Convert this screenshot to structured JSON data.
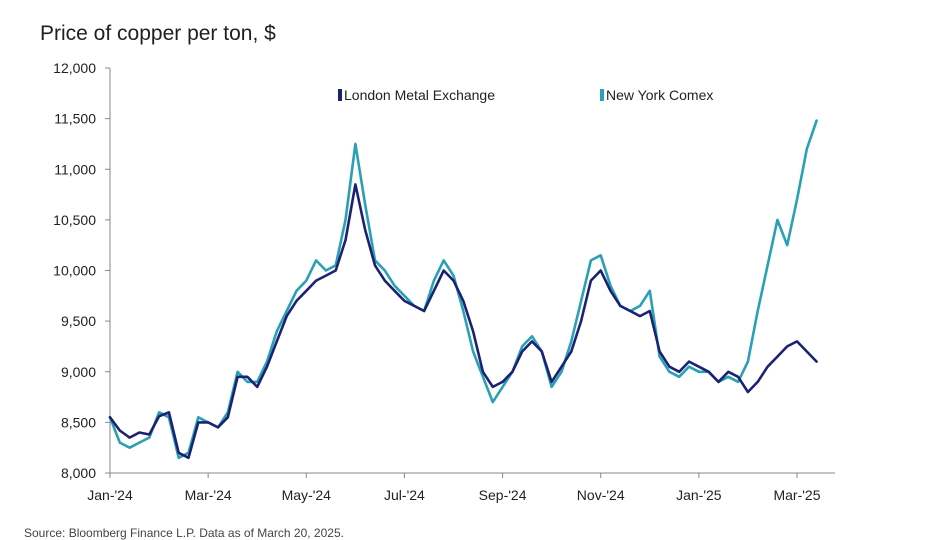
{
  "chart_data": {
    "type": "line",
    "title": "Price of copper per ton, $",
    "xlabel": "",
    "ylabel": "",
    "ylim": [
      8000,
      12000
    ],
    "yticks": [
      8000,
      8500,
      9000,
      9500,
      10000,
      10500,
      11000,
      11500,
      12000
    ],
    "ytick_labels": [
      "8,000",
      "8,500",
      "9,000",
      "9,500",
      "10,000",
      "10,500",
      "11,000",
      "11,500",
      "12,000"
    ],
    "xlim": [
      0,
      14.4
    ],
    "xticks": [
      0,
      2,
      4,
      6,
      8,
      10,
      12,
      14
    ],
    "xtick_labels": [
      "Jan-'24",
      "Mar-'24",
      "May-'24",
      "Jul-'24",
      "Sep-'24",
      "Nov-'24",
      "Jan-'25",
      "Mar-'25"
    ],
    "legend_position": "top",
    "x_unit": "months since Jan 2024",
    "series": [
      {
        "name": "London Metal Exchange",
        "color": "#1c2272",
        "x": [
          0,
          0.2,
          0.4,
          0.6,
          0.8,
          1.0,
          1.2,
          1.4,
          1.6,
          1.8,
          2.0,
          2.2,
          2.4,
          2.6,
          2.8,
          3.0,
          3.2,
          3.4,
          3.6,
          3.8,
          4.0,
          4.2,
          4.4,
          4.6,
          4.8,
          5.0,
          5.2,
          5.4,
          5.6,
          5.8,
          6.0,
          6.2,
          6.4,
          6.6,
          6.8,
          7.0,
          7.2,
          7.4,
          7.6,
          7.8,
          8.0,
          8.2,
          8.4,
          8.6,
          8.8,
          9.0,
          9.2,
          9.4,
          9.6,
          9.8,
          10.0,
          10.2,
          10.4,
          10.6,
          10.8,
          11.0,
          11.2,
          11.4,
          11.6,
          11.8,
          12.0,
          12.2,
          12.4,
          12.6,
          12.8,
          13.0,
          13.2,
          13.4,
          13.6,
          13.8,
          14.0,
          14.2,
          14.4
        ],
        "values": [
          8550,
          8420,
          8350,
          8400,
          8380,
          8560,
          8600,
          8200,
          8150,
          8500,
          8500,
          8450,
          8550,
          8950,
          8950,
          8850,
          9050,
          9300,
          9550,
          9700,
          9800,
          9900,
          9950,
          10000,
          10300,
          10850,
          10400,
          10050,
          9900,
          9800,
          9700,
          9650,
          9600,
          9800,
          10000,
          9900,
          9700,
          9400,
          9000,
          8850,
          8900,
          9000,
          9200,
          9300,
          9200,
          8900,
          9050,
          9200,
          9500,
          9900,
          10000,
          9800,
          9650,
          9600,
          9550,
          9600,
          9200,
          9050,
          9000,
          9100,
          9050,
          9000,
          8900,
          9000,
          8950,
          8800,
          8900,
          9050,
          9150,
          9250,
          9300,
          9200,
          9100
        ]
      },
      {
        "name": "New York Comex",
        "color": "#2aa0b4",
        "x": [
          0,
          0.2,
          0.4,
          0.6,
          0.8,
          1.0,
          1.2,
          1.4,
          1.6,
          1.8,
          2.0,
          2.2,
          2.4,
          2.6,
          2.8,
          3.0,
          3.2,
          3.4,
          3.6,
          3.8,
          4.0,
          4.2,
          4.4,
          4.6,
          4.8,
          5.0,
          5.2,
          5.4,
          5.6,
          5.8,
          6.0,
          6.2,
          6.4,
          6.6,
          6.8,
          7.0,
          7.2,
          7.4,
          7.6,
          7.8,
          8.0,
          8.2,
          8.4,
          8.6,
          8.8,
          9.0,
          9.2,
          9.4,
          9.6,
          9.8,
          10.0,
          10.2,
          10.4,
          10.6,
          10.8,
          11.0,
          11.2,
          11.4,
          11.6,
          11.8,
          12.0,
          12.2,
          12.4,
          12.6,
          12.8,
          13.0,
          13.2,
          13.4,
          13.6,
          13.8,
          14.0,
          14.2,
          14.4
        ],
        "values": [
          8550,
          8300,
          8250,
          8300,
          8350,
          8600,
          8550,
          8150,
          8200,
          8550,
          8500,
          8450,
          8600,
          9000,
          8900,
          8900,
          9100,
          9400,
          9600,
          9800,
          9900,
          10100,
          10000,
          10050,
          10500,
          11250,
          10650,
          10100,
          10000,
          9850,
          9750,
          9650,
          9600,
          9900,
          10100,
          9950,
          9600,
          9200,
          8950,
          8700,
          8850,
          9000,
          9250,
          9350,
          9200,
          8850,
          9000,
          9300,
          9700,
          10100,
          10150,
          9850,
          9650,
          9600,
          9650,
          9800,
          9150,
          9000,
          8950,
          9050,
          9000,
          9000,
          8900,
          8950,
          8900,
          9100,
          9600,
          10050,
          10500,
          10250,
          10700,
          11200,
          11480
        ]
      }
    ]
  },
  "footer": {
    "source": "Source: Bloomberg Finance L.P. Data as of March 20, 2025."
  }
}
